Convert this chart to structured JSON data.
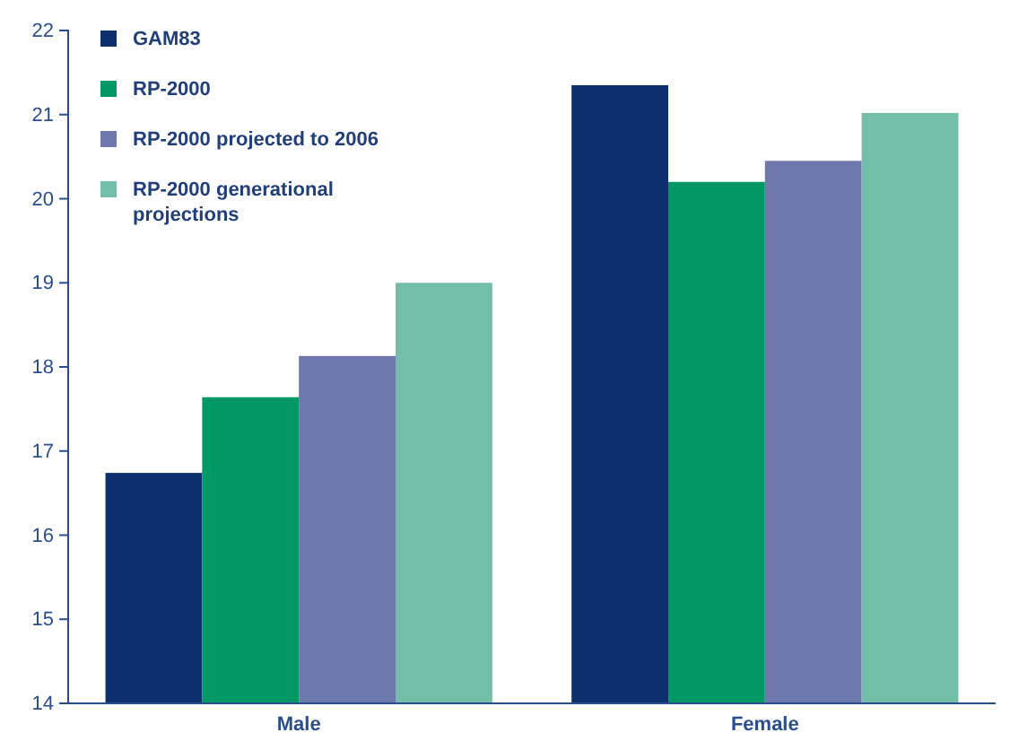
{
  "chart_data": {
    "type": "bar",
    "categories": [
      "Male",
      "Female"
    ],
    "series": [
      {
        "name": "GAM83",
        "color": "#0d2f6e",
        "values": [
          16.74,
          21.35
        ]
      },
      {
        "name": "RP-2000",
        "color": "#009966",
        "values": [
          17.64,
          20.2
        ]
      },
      {
        "name": "RP-2000 projected to 2006",
        "color": "#6e78ac",
        "values": [
          18.13,
          20.45
        ]
      },
      {
        "name": "RP-2000 generational projections",
        "color": "#72bea9",
        "values": [
          19.0,
          21.02
        ]
      }
    ],
    "ylim": [
      14,
      22
    ],
    "yticks": [
      14,
      15,
      16,
      17,
      18,
      19,
      20,
      21,
      22
    ],
    "grid": false,
    "legend": "top left"
  }
}
